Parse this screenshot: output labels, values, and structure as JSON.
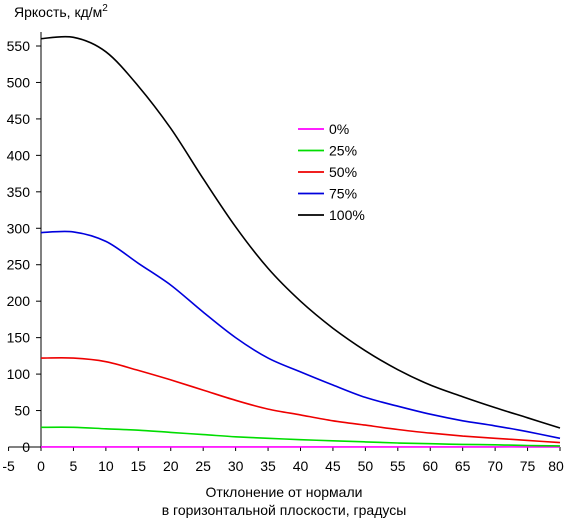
{
  "chart_data": {
    "type": "line",
    "title": "",
    "ylabel": "Яркость, кд/м",
    "ylabel_superscript": "2",
    "xlabel_line1": "Отклонение от нормали",
    "xlabel_line2": "в горизонтальной плоскости, градусы",
    "xlim": [
      -5,
      80
    ],
    "ylim": [
      0,
      570
    ],
    "x_ticks": [
      -5,
      0,
      5,
      10,
      15,
      20,
      25,
      30,
      35,
      40,
      45,
      50,
      55,
      60,
      65,
      70,
      75,
      80
    ],
    "y_ticks": [
      0,
      50,
      100,
      150,
      200,
      250,
      300,
      350,
      400,
      450,
      500,
      550
    ],
    "grid": false,
    "legend_position": "right-center",
    "x": [
      0,
      5,
      10,
      15,
      20,
      25,
      30,
      35,
      40,
      45,
      50,
      55,
      60,
      65,
      70,
      75,
      80
    ],
    "series": [
      {
        "name": "0%",
        "color": "#ff00ff",
        "values": [
          0.2,
          0.2,
          0.2,
          0.2,
          0.2,
          0.2,
          0.2,
          0.2,
          0.2,
          0.2,
          0.2,
          0.2,
          0.2,
          0.2,
          0.2,
          0.2,
          0.1
        ]
      },
      {
        "name": "25%",
        "color": "#00dd00",
        "values": [
          27,
          27,
          25,
          23,
          20,
          17,
          14,
          12,
          10,
          8.5,
          7,
          5.5,
          4.5,
          3.5,
          3,
          2,
          1.5
        ]
      },
      {
        "name": "50%",
        "color": "#ee0000",
        "values": [
          122,
          122,
          117,
          105,
          92,
          78,
          64,
          52,
          44,
          36,
          30,
          24,
          19,
          15,
          12,
          9,
          6
        ]
      },
      {
        "name": "75%",
        "color": "#0000dd",
        "values": [
          294,
          295,
          282,
          252,
          222,
          185,
          150,
          122,
          103,
          85,
          68,
          56,
          45,
          36,
          29,
          21,
          12
        ]
      },
      {
        "name": "100%",
        "color": "#000000",
        "values": [
          560,
          562,
          542,
          495,
          437,
          368,
          302,
          245,
          200,
          163,
          132,
          106,
          85,
          69,
          54,
          40,
          26
        ]
      }
    ]
  }
}
